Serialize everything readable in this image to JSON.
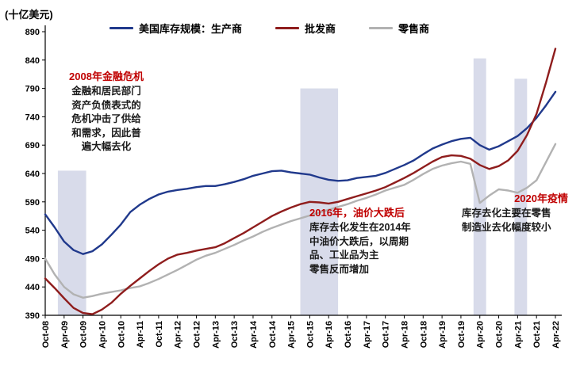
{
  "chart_data": {
    "type": "line",
    "title": "",
    "ylabel": "(十亿美元)",
    "xlabel": "",
    "ylim": [
      390,
      890
    ],
    "y_ticks": [
      390,
      440,
      490,
      540,
      590,
      640,
      690,
      740,
      790,
      840,
      890
    ],
    "x_tick_labels": [
      "Oct-08",
      "Apr-09",
      "Oct-09",
      "Apr-10",
      "Oct-10",
      "Apr-11",
      "Oct-11",
      "Apr-12",
      "Oct-12",
      "Apr-13",
      "Oct-13",
      "Apr-14",
      "Oct-14",
      "Apr-15",
      "Oct-15",
      "Apr-16",
      "Oct-16",
      "Apr-17",
      "Oct-17",
      "Apr-18",
      "Oct-18",
      "Apr-19",
      "Oct-19",
      "Apr-20",
      "Oct-20",
      "Apr-21",
      "Oct-21",
      "Apr-22"
    ],
    "total_months": 162,
    "months_per_point": 3,
    "tick_every_months": 6,
    "band_color": "#D8DBEA",
    "bands": [
      {
        "label": "2008-09 destocking",
        "from": "Feb-09",
        "to": "Nov-09",
        "start_month": 4,
        "end_month": 13,
        "top": 645
      },
      {
        "label": "2015-16 destocking",
        "from": "Jul-15",
        "to": "Jul-16",
        "start_month": 81,
        "end_month": 93,
        "top": 790
      },
      {
        "label": "2020 destocking",
        "from": "Feb-20",
        "to": "Jun-20",
        "start_month": 136,
        "end_month": 140,
        "top": 843
      },
      {
        "label": "2021 destocking",
        "from": "Mar-21",
        "to": "Jul-21",
        "start_month": 149,
        "end_month": 153,
        "top": 807
      }
    ],
    "series": [
      {
        "key": "producers",
        "name": "美国库存规模：生产商",
        "color": "#20398C",
        "values": [
          568,
          545,
          520,
          505,
          498,
          503,
          515,
          532,
          550,
          572,
          585,
          595,
          603,
          608,
          611,
          613,
          616,
          618,
          618,
          621,
          625,
          630,
          636,
          640,
          644,
          645,
          642,
          640,
          638,
          633,
          629,
          627,
          628,
          632,
          634,
          636,
          641,
          648,
          655,
          663,
          674,
          684,
          691,
          697,
          701,
          703,
          690,
          682,
          688,
          697,
          706,
          720,
          738,
          760,
          784
        ]
      },
      {
        "key": "wholesalers",
        "name": "批发商",
        "color": "#8F1D1D",
        "values": [
          455,
          438,
          420,
          403,
          394,
          392,
          400,
          412,
          428,
          442,
          455,
          468,
          480,
          490,
          497,
          500,
          504,
          507,
          510,
          517,
          526,
          535,
          545,
          555,
          565,
          573,
          580,
          586,
          590,
          589,
          587,
          590,
          595,
          600,
          605,
          610,
          616,
          624,
          632,
          641,
          651,
          661,
          669,
          672,
          671,
          666,
          655,
          648,
          653,
          663,
          680,
          708,
          745,
          800,
          860
        ]
      },
      {
        "key": "retailers",
        "name": "零售商",
        "color": "#B2B2B2",
        "values": [
          490,
          462,
          440,
          427,
          421,
          424,
          428,
          431,
          434,
          438,
          441,
          447,
          454,
          462,
          470,
          479,
          488,
          495,
          500,
          507,
          514,
          522,
          529,
          537,
          544,
          550,
          556,
          561,
          566,
          571,
          576,
          581,
          586,
          592,
          597,
          603,
          610,
          615,
          620,
          629,
          639,
          648,
          654,
          658,
          661,
          657,
          588,
          601,
          612,
          610,
          606,
          615,
          628,
          660,
          692
        ]
      }
    ],
    "annotations": {
      "crisis_2008": {
        "title": "2008年金融危机",
        "body": "金融和居民部门\n资产负债表式的\n危机冲击了供给\n和需求，因此普\n遍大幅去化"
      },
      "oil_2016": {
        "title": "2016年，油价大跌后",
        "body": "库存去化发生在2014年\n中油价大跌后，以周期\n品、工业品为主\n零售反而增加"
      },
      "covid_2020": {
        "title": "2020年疫情",
        "body": "库存去化主要在零售\n制造业去化幅度较小"
      }
    },
    "accent_annotation_color": "#C00000"
  }
}
